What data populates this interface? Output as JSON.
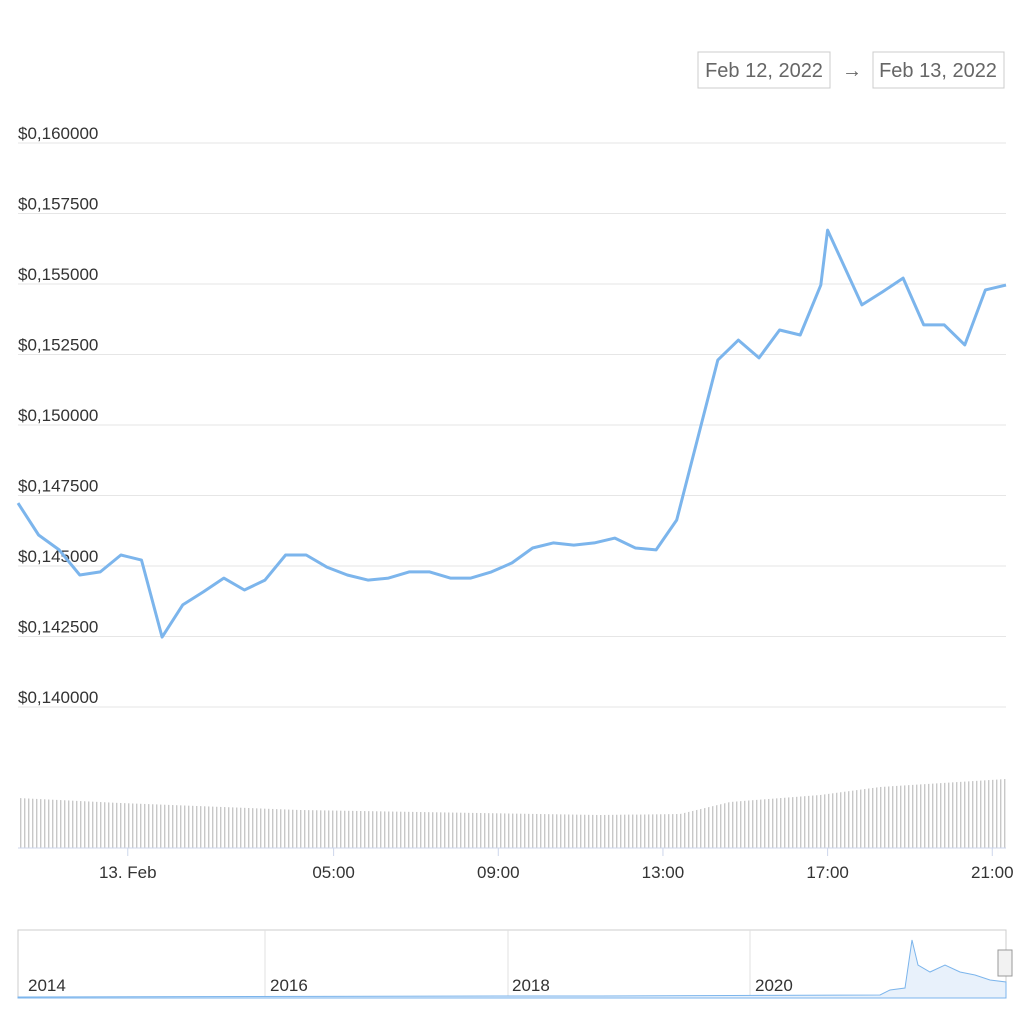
{
  "range": {
    "from": "Feb 12, 2022",
    "separator": "→",
    "to": "Feb 13, 2022"
  },
  "chart_data": {
    "type": "line",
    "color": "#7cb5ec",
    "grid": true,
    "x": [
      "2022-02-12T21:20",
      "2022-02-12T21:50",
      "2022-02-12T22:20",
      "2022-02-12T22:50",
      "2022-02-12T23:20",
      "2022-02-12T23:50",
      "2022-02-13T00:20",
      "2022-02-13T00:50",
      "2022-02-13T01:20",
      "2022-02-13T01:50",
      "2022-02-13T02:20",
      "2022-02-13T02:50",
      "2022-02-13T03:20",
      "2022-02-13T03:50",
      "2022-02-13T04:20",
      "2022-02-13T04:50",
      "2022-02-13T05:20",
      "2022-02-13T05:50",
      "2022-02-13T06:20",
      "2022-02-13T06:50",
      "2022-02-13T07:20",
      "2022-02-13T07:50",
      "2022-02-13T08:20",
      "2022-02-13T08:50",
      "2022-02-13T09:20",
      "2022-02-13T09:50",
      "2022-02-13T10:20",
      "2022-02-13T10:50",
      "2022-02-13T11:20",
      "2022-02-13T11:50",
      "2022-02-13T12:20",
      "2022-02-13T12:50",
      "2022-02-13T13:20",
      "2022-02-13T13:50",
      "2022-02-13T14:20",
      "2022-02-13T14:50",
      "2022-02-13T15:20",
      "2022-02-13T15:50",
      "2022-02-13T16:20",
      "2022-02-13T16:50",
      "2022-02-13T17:00",
      "2022-02-13T17:20",
      "2022-02-13T17:50",
      "2022-02-13T18:20",
      "2022-02-13T18:50",
      "2022-02-13T19:20",
      "2022-02-13T19:50",
      "2022-02-13T20:20",
      "2022-02-13T20:50",
      "2022-02-13T21:20"
    ],
    "values": [
      0.14723,
      0.1461,
      0.14557,
      0.14468,
      0.14479,
      0.14539,
      0.14521,
      0.14248,
      0.14362,
      0.14408,
      0.14457,
      0.14415,
      0.1445,
      0.14539,
      0.14539,
      0.14496,
      0.14468,
      0.1445,
      0.14457,
      0.14479,
      0.14479,
      0.14457,
      0.14457,
      0.14479,
      0.14511,
      0.14564,
      0.14582,
      0.14574,
      0.14582,
      0.14599,
      0.14564,
      0.14557,
      0.14663,
      0.14947,
      0.1523,
      0.15301,
      0.15238,
      0.15337,
      0.15319,
      0.15496,
      0.15691,
      0.15585,
      0.15426,
      0.15472,
      0.15521,
      0.15355,
      0.15355,
      0.15284,
      0.15479,
      0.15496
    ],
    "xlim": [
      "2022-02-12T21:20",
      "2022-02-13T21:20"
    ],
    "xticks": [
      {
        "value": "2022-02-13T00:00",
        "label": "13. Feb"
      },
      {
        "value": "2022-02-13T05:00",
        "label": "05:00"
      },
      {
        "value": "2022-02-13T09:00",
        "label": "09:00"
      },
      {
        "value": "2022-02-13T13:00",
        "label": "13:00"
      },
      {
        "value": "2022-02-13T17:00",
        "label": "17:00"
      },
      {
        "value": "2022-02-13T21:00",
        "label": "21:00"
      }
    ],
    "ylim": [
      0.14,
      0.16
    ],
    "yticks": [
      {
        "value": 0.14,
        "label": "$0,140000"
      },
      {
        "value": 0.1425,
        "label": "$0,142500"
      },
      {
        "value": 0.145,
        "label": "$0,145000"
      },
      {
        "value": 0.1475,
        "label": "$0,147500"
      },
      {
        "value": 0.15,
        "label": "$0,150000"
      },
      {
        "value": 0.1525,
        "label": "$0,152500"
      },
      {
        "value": 0.155,
        "label": "$0,155000"
      },
      {
        "value": 0.1575,
        "label": "$0,157500"
      },
      {
        "value": 0.16,
        "label": "$0,160000"
      }
    ]
  },
  "navigator": {
    "labels": [
      "2014",
      "2016",
      "2018",
      "2020"
    ]
  }
}
